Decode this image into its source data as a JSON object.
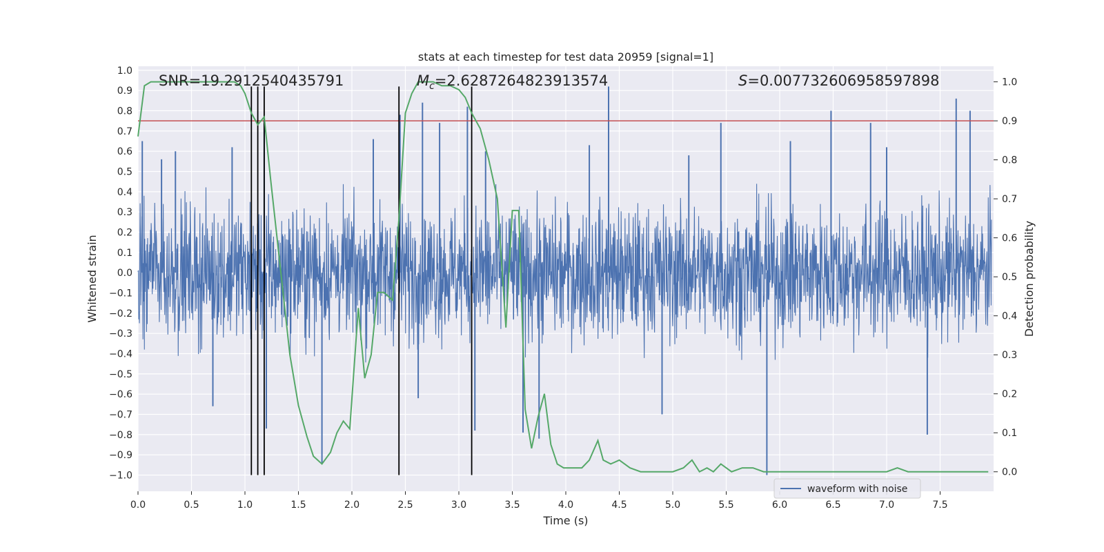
{
  "chart_data": {
    "type": "line",
    "title": "stats at each timestep for test data 20959 [signal=1]",
    "xlabel": "Time (s)",
    "ylabel_left": "Whitened strain",
    "ylabel_right": "Detection probability",
    "xlim": [
      0.0,
      8.0
    ],
    "ylim_left": [
      -1.08,
      1.02
    ],
    "ylim_right": [
      -0.05,
      1.04
    ],
    "x_ticks": [
      "0.0",
      "0.5",
      "1.0",
      "1.5",
      "2.0",
      "2.5",
      "3.0",
      "3.5",
      "4.0",
      "4.5",
      "5.0",
      "5.5",
      "6.0",
      "6.5",
      "7.0",
      "7.5"
    ],
    "x_tick_values": [
      0.0,
      0.5,
      1.0,
      1.5,
      2.0,
      2.5,
      3.0,
      3.5,
      4.0,
      4.5,
      5.0,
      5.5,
      6.0,
      6.5,
      7.0,
      7.5
    ],
    "y_left_ticks": [
      "1.0",
      "0.9",
      "0.8",
      "0.7",
      "0.6",
      "0.5",
      "0.4",
      "0.3",
      "0.2",
      "0.1",
      "0.0",
      "−0.1",
      "−0.2",
      "−0.3",
      "−0.4",
      "−0.5",
      "−0.6",
      "−0.7",
      "−0.8",
      "−0.9",
      "−1.0"
    ],
    "y_left_tick_values": [
      1.0,
      0.9,
      0.8,
      0.7,
      0.6,
      0.5,
      0.4,
      0.3,
      0.2,
      0.1,
      0.0,
      -0.1,
      -0.2,
      -0.3,
      -0.4,
      -0.5,
      -0.6,
      -0.7,
      -0.8,
      -0.9,
      -1.0
    ],
    "y_right_ticks": [
      "1.0",
      "0.9",
      "0.8",
      "0.7",
      "0.6",
      "0.5",
      "0.4",
      "0.3",
      "0.2",
      "0.1",
      "0.0"
    ],
    "y_right_tick_values": [
      1.0,
      0.9,
      0.8,
      0.7,
      0.6,
      0.5,
      0.4,
      0.3,
      0.2,
      0.1,
      0.0
    ],
    "annotations": {
      "snr": "SNR=19.2912540435791",
      "mc": "=2.6287264823913574",
      "mc_symbol": "M",
      "mc_sub": "c",
      "s": "=0.007732606958597898",
      "s_symbol": "S"
    },
    "legend": {
      "label": "waveform with noise",
      "placement": "lower-right"
    },
    "threshold": {
      "value": 0.9,
      "axis": "right",
      "color": "#c44e52"
    },
    "vertical_markers": [
      1.06,
      1.12,
      1.18,
      2.44,
      3.12
    ],
    "vertical_marker_range": [
      -1.0,
      0.92
    ],
    "waveform": {
      "name": "waveform with noise",
      "color": "#4c72b0",
      "spike_times": [
        0.04,
        0.22,
        0.35,
        0.7,
        0.88,
        1.18,
        1.2,
        1.72,
        2.2,
        2.45,
        2.62,
        2.66,
        2.82,
        3.08,
        3.15,
        3.25,
        3.6,
        3.75,
        4.22,
        4.4,
        4.9,
        5.15,
        5.45,
        5.88,
        6.1,
        6.48,
        6.85,
        7.0,
        7.38,
        7.65,
        7.78
      ],
      "spike_values": [
        0.65,
        0.56,
        0.6,
        -0.66,
        0.62,
        0.75,
        -0.77,
        -0.94,
        0.66,
        0.78,
        -0.62,
        0.84,
        0.74,
        0.82,
        -0.78,
        0.6,
        -0.79,
        -0.82,
        0.63,
        0.92,
        -0.7,
        0.58,
        0.74,
        -1.0,
        0.65,
        0.8,
        0.74,
        0.62,
        -0.8,
        0.86,
        0.8
      ]
    },
    "detection_probability": {
      "name": "detection probability",
      "color": "#55a868",
      "x": [
        0.0,
        0.06,
        0.12,
        0.18,
        0.3,
        0.45,
        0.6,
        0.75,
        0.9,
        0.96,
        1.0,
        1.06,
        1.12,
        1.18,
        1.24,
        1.3,
        1.36,
        1.42,
        1.5,
        1.58,
        1.64,
        1.72,
        1.8,
        1.86,
        1.92,
        1.98,
        2.06,
        2.12,
        2.18,
        2.24,
        2.3,
        2.38,
        2.44,
        2.5,
        2.56,
        2.62,
        2.7,
        2.76,
        2.84,
        2.92,
        3.0,
        3.06,
        3.12,
        3.2,
        3.28,
        3.36,
        3.44,
        3.5,
        3.56,
        3.62,
        3.68,
        3.74,
        3.8,
        3.86,
        3.92,
        3.98,
        4.05,
        4.15,
        4.22,
        4.3,
        4.35,
        4.42,
        4.5,
        4.6,
        4.7,
        4.8,
        5.0,
        5.1,
        5.18,
        5.25,
        5.32,
        5.38,
        5.45,
        5.55,
        5.65,
        5.75,
        5.85,
        6.0,
        6.5,
        7.0,
        7.1,
        7.2,
        7.5,
        7.95
      ],
      "y": [
        0.86,
        0.99,
        1.0,
        1.0,
        1.0,
        1.0,
        1.0,
        1.0,
        1.0,
        0.99,
        0.97,
        0.92,
        0.89,
        0.91,
        0.75,
        0.6,
        0.45,
        0.3,
        0.17,
        0.09,
        0.04,
        0.02,
        0.05,
        0.1,
        0.13,
        0.11,
        0.42,
        0.24,
        0.3,
        0.46,
        0.46,
        0.44,
        0.65,
        0.92,
        0.97,
        1.0,
        1.0,
        1.0,
        0.99,
        0.99,
        0.98,
        0.96,
        0.92,
        0.88,
        0.8,
        0.7,
        0.37,
        0.67,
        0.67,
        0.16,
        0.06,
        0.14,
        0.2,
        0.07,
        0.02,
        0.01,
        0.01,
        0.01,
        0.03,
        0.08,
        0.03,
        0.02,
        0.03,
        0.01,
        0.0,
        0.0,
        0.0,
        0.01,
        0.03,
        0.0,
        0.01,
        0.0,
        0.02,
        0.0,
        0.01,
        0.01,
        0.0,
        0.0,
        0.0,
        0.0,
        0.01,
        0.0,
        0.0,
        0.0
      ]
    }
  }
}
